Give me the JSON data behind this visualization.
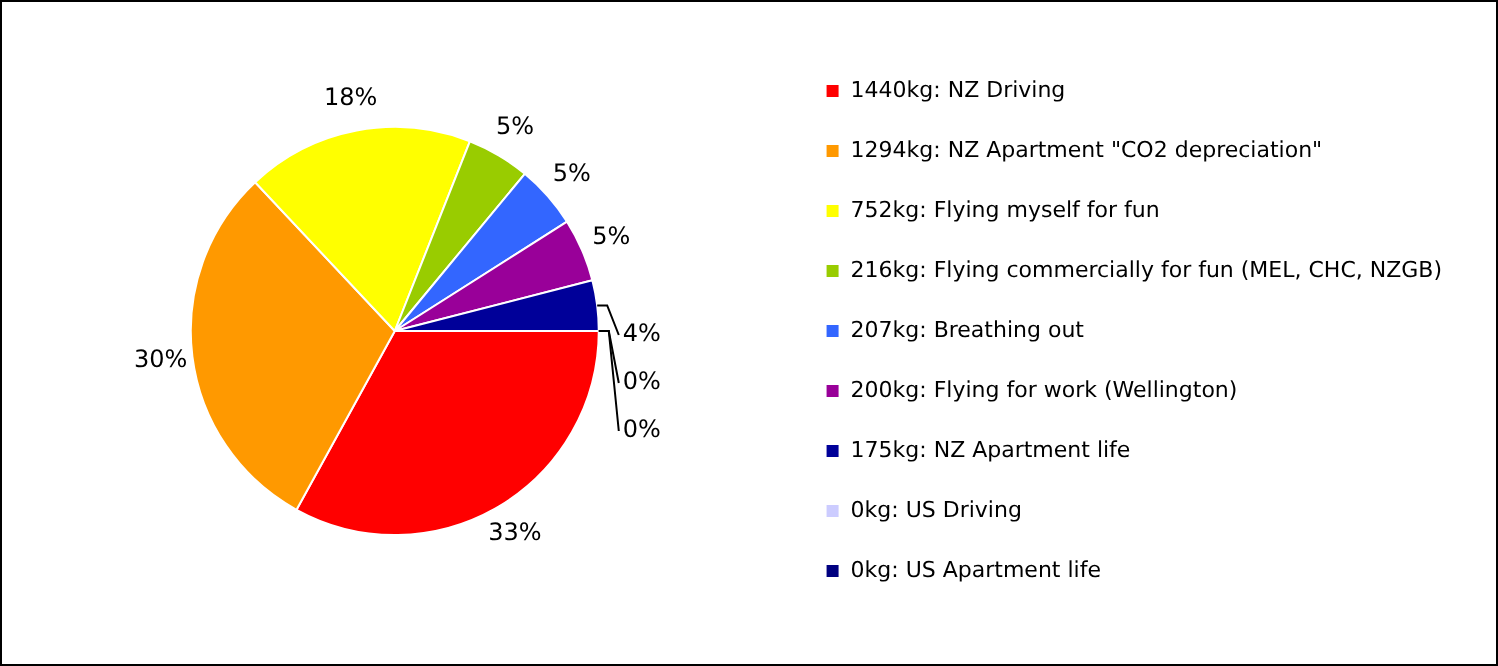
{
  "chart_data": {
    "type": "pie",
    "categories": [
      "1440kg: NZ Driving",
      "1294kg: NZ Apartment \"CO2 depreciation\"",
      "752kg: Flying myself for fun",
      "216kg: Flying commercially for fun (MEL, CHC, NZGB)",
      "207kg: Breathing out",
      "200kg: Flying for work (Wellington)",
      "175kg: NZ Apartment life",
      "0kg: US Driving",
      "0kg: US Apartment life"
    ],
    "values": [
      33,
      30,
      18,
      5,
      5,
      5,
      4,
      0,
      0
    ],
    "colors": [
      "#ff0000",
      "#ff9900",
      "#ffff00",
      "#99cc00",
      "#3366ff",
      "#990099",
      "#000099",
      "#ccccff",
      "#000080"
    ],
    "value_labels": [
      "33%",
      "30%",
      "18%",
      "5%",
      "5%",
      "5%",
      "4%",
      "0%",
      "0%"
    ],
    "legend": "right"
  }
}
